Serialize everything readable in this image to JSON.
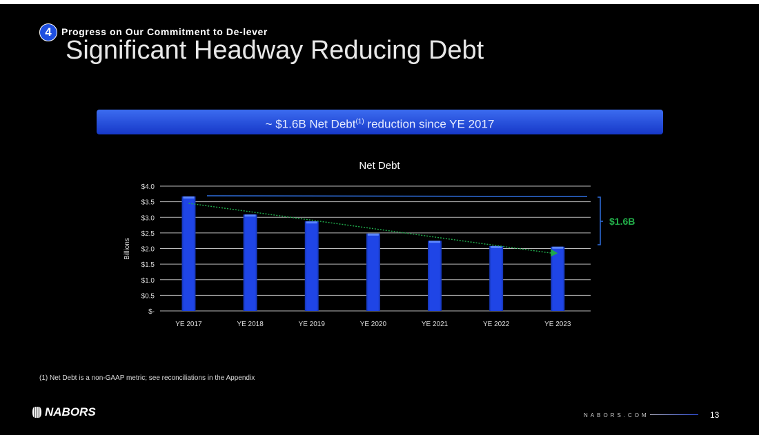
{
  "header": {
    "section_number": "4",
    "section_title": "Progress on Our Commitment to De-lever",
    "title": "Significant Headway Reducing Debt"
  },
  "banner": {
    "text_before": "~ $1.6B Net Debt",
    "superscript": "(1)",
    "text_after": " reduction since YE 2017"
  },
  "footnote": "(1) Net Debt is a non-GAAP metric; see reconciliations in the Appendix",
  "footer": {
    "logo": "NABORS",
    "site": "NABORS.COM",
    "page": "13"
  },
  "colors": {
    "bar": "#1f45e6",
    "trend": "#1fa84a",
    "bracket": "#2f6fe0",
    "label": "#22b04a"
  },
  "chart_data": {
    "type": "bar",
    "title": "Net Debt",
    "xlabel": "",
    "ylabel": "Billions",
    "categories": [
      "YE 2017",
      "YE 2018",
      "YE 2019",
      "YE 2020",
      "YE 2021",
      "YE 2022",
      "YE 2023"
    ],
    "values": [
      3.67,
      3.09,
      2.87,
      2.48,
      2.25,
      2.08,
      2.06
    ],
    "ylim": [
      0,
      4.0
    ],
    "yticks": [
      0,
      0.5,
      1.0,
      1.5,
      2.0,
      2.5,
      3.0,
      3.5,
      4.0
    ],
    "ytick_labels": [
      "$-",
      "$0.5",
      "$1.0",
      "$1.5",
      "$2.0",
      "$2.5",
      "$3.0",
      "$3.5",
      "$4.0"
    ],
    "grid": true,
    "trendline": {
      "from": 3.45,
      "to": 1.85
    },
    "annotation": "$1.6B"
  }
}
